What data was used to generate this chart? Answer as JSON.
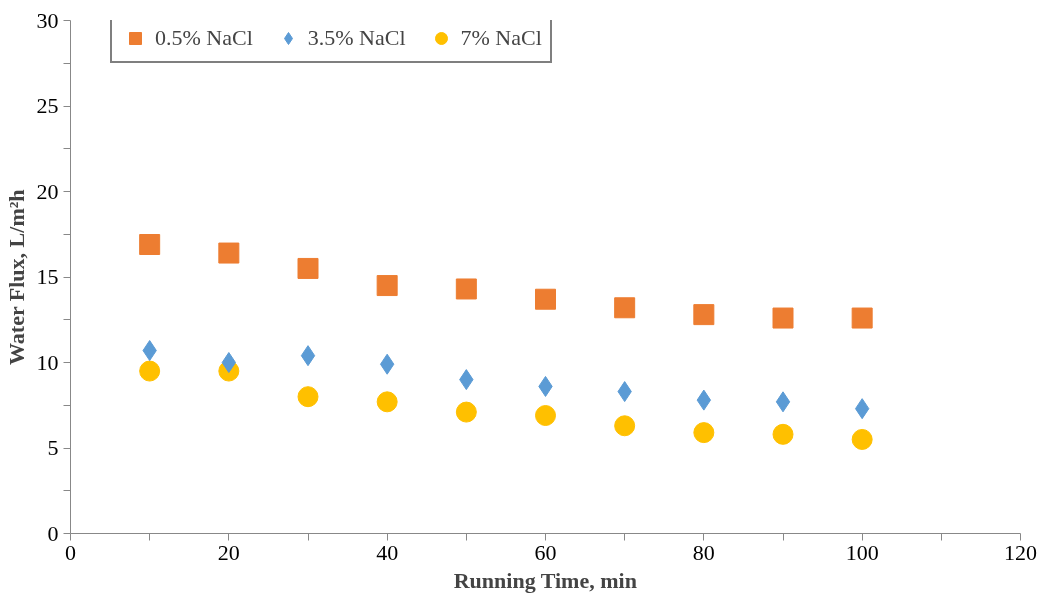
{
  "chart_data": {
    "type": "scatter",
    "xlabel": "Running Time, min",
    "ylabel": "Water Flux, L/m²h",
    "x": [
      10,
      20,
      30,
      40,
      50,
      60,
      70,
      80,
      90,
      100
    ],
    "series": [
      {
        "name": "0.5% NaCl",
        "color": "#ed7d31",
        "marker": "square",
        "values": [
          16.9,
          16.4,
          15.5,
          14.5,
          14.3,
          13.7,
          13.2,
          12.8,
          12.6,
          12.6
        ]
      },
      {
        "name": "3.5% NaCl",
        "color": "#5b9bd5",
        "marker": "diamond",
        "values": [
          10.7,
          10.0,
          10.4,
          9.9,
          9.0,
          8.6,
          8.3,
          7.8,
          7.7,
          7.3
        ]
      },
      {
        "name": "7% NaCl",
        "color": "#ffc000",
        "marker": "circle",
        "values": [
          9.5,
          9.5,
          8.0,
          7.7,
          7.1,
          6.9,
          6.3,
          5.9,
          5.8,
          5.5
        ]
      }
    ],
    "xlim": [
      0,
      120
    ],
    "ylim": [
      0,
      30
    ],
    "xticks": [
      0,
      {
        "value": 10,
        "label": null
      },
      20,
      {
        "value": 30,
        "label": null
      },
      40,
      {
        "value": 50,
        "label": null
      },
      60,
      {
        "value": 70,
        "label": null
      },
      80,
      {
        "value": 90,
        "label": null
      },
      100,
      {
        "value": 110,
        "label": null
      },
      120
    ],
    "yticks": [
      0,
      {
        "value": 2.5,
        "label": null
      },
      5,
      {
        "value": 7.5,
        "label": null
      },
      10,
      {
        "value": 12.5,
        "label": null
      },
      15,
      {
        "value": 17.5,
        "label": null
      },
      20,
      {
        "value": 22.5,
        "label": null
      },
      25,
      {
        "value": 27.5,
        "label": null
      },
      30
    ],
    "grid": false,
    "legend": "top"
  }
}
